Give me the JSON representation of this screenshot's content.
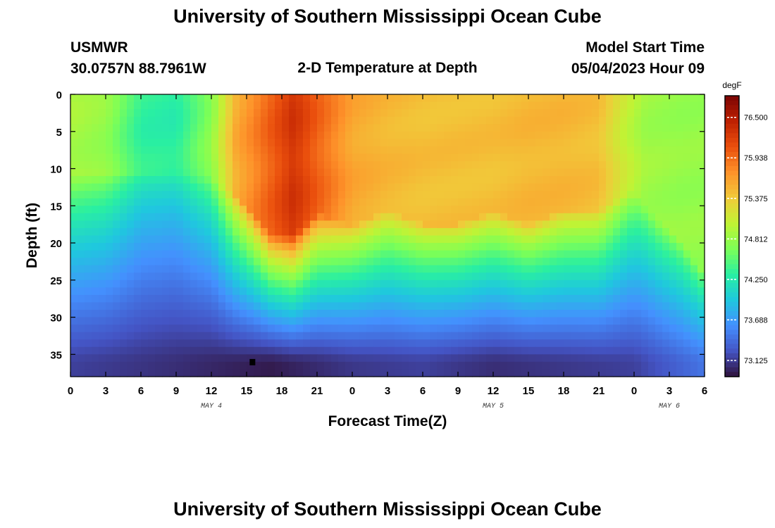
{
  "page": {
    "title": "University of Southern Mississippi Ocean Cube",
    "footer_title": "University of Southern Mississippi Ocean Cube",
    "station": "USMWR",
    "coords": "30.0757N  88.7961W",
    "subtitle": "2-D Temperature at Depth",
    "model_label": "Model Start Time",
    "model_time": "05/04/2023 Hour 09"
  },
  "chart_data": {
    "type": "heatmap",
    "title": "2-D Temperature at Depth",
    "xlabel": "Forecast Time(Z)",
    "ylabel": "Depth (ft)",
    "units": "degF",
    "xlim": [
      0,
      54
    ],
    "ylim": [
      0,
      38
    ],
    "x_tick_values": [
      0,
      3,
      6,
      9,
      12,
      15,
      18,
      21,
      24,
      27,
      30,
      33,
      36,
      39,
      42,
      45,
      48,
      51,
      54
    ],
    "x_tick_labels": [
      "0",
      "3",
      "6",
      "9",
      "12",
      "15",
      "18",
      "21",
      "0",
      "3",
      "6",
      "9",
      "12",
      "15",
      "18",
      "21",
      "0",
      "3",
      "6"
    ],
    "y_tick_values": [
      0,
      5,
      10,
      15,
      20,
      25,
      30,
      35
    ],
    "y_tick_labels": [
      "0",
      "5",
      "10",
      "15",
      "20",
      "25",
      "30",
      "35"
    ],
    "date_labels": [
      {
        "x": 12,
        "text": "MAY 4"
      },
      {
        "x": 36,
        "text": "MAY 5"
      },
      {
        "x": 51,
        "text": "MAY 6"
      }
    ],
    "colorbar": {
      "label": "degF",
      "min": 72.9,
      "max": 76.8,
      "ticks": [
        73.125,
        73.688,
        74.25,
        74.812,
        75.375,
        75.938,
        76.5
      ],
      "tick_labels": [
        "73.125",
        "73.688",
        "74.250",
        "74.812",
        "75.375",
        "75.938",
        "76.500"
      ]
    },
    "thermocline_depth": [
      {
        "x": 0,
        "depth": 13
      },
      {
        "x": 6,
        "depth": 13
      },
      {
        "x": 12,
        "depth": 13
      },
      {
        "x": 14,
        "depth": 15.5
      },
      {
        "x": 17,
        "depth": 21
      },
      {
        "x": 19,
        "depth": 21
      },
      {
        "x": 21,
        "depth": 18
      },
      {
        "x": 24,
        "depth": 19.5
      },
      {
        "x": 27,
        "depth": 17.5
      },
      {
        "x": 30,
        "depth": 19.5
      },
      {
        "x": 33,
        "depth": 19.5
      },
      {
        "x": 36,
        "depth": 18
      },
      {
        "x": 39,
        "depth": 19.5
      },
      {
        "x": 42,
        "depth": 17.5
      },
      {
        "x": 45,
        "depth": 17.5
      },
      {
        "x": 48,
        "depth": 15
      },
      {
        "x": 50,
        "depth": 19
      },
      {
        "x": 52,
        "depth": 22
      },
      {
        "x": 54,
        "depth": 26
      }
    ],
    "surface_temperature": [
      {
        "x": 0,
        "value": 74.9
      },
      {
        "x": 3,
        "value": 74.8
      },
      {
        "x": 6,
        "value": 74.35
      },
      {
        "x": 9,
        "value": 74.3
      },
      {
        "x": 12,
        "value": 74.75
      },
      {
        "x": 14,
        "value": 75.55
      },
      {
        "x": 17,
        "value": 76.0
      },
      {
        "x": 19,
        "value": 76.3
      },
      {
        "x": 21,
        "value": 76.0
      },
      {
        "x": 24,
        "value": 75.6
      },
      {
        "x": 27,
        "value": 75.5
      },
      {
        "x": 30,
        "value": 75.45
      },
      {
        "x": 33,
        "value": 75.45
      },
      {
        "x": 36,
        "value": 75.45
      },
      {
        "x": 39,
        "value": 75.5
      },
      {
        "x": 42,
        "value": 75.5
      },
      {
        "x": 45,
        "value": 75.45
      },
      {
        "x": 47,
        "value": 75.1
      },
      {
        "x": 49,
        "value": 74.85
      },
      {
        "x": 52,
        "value": 74.8
      },
      {
        "x": 54,
        "value": 74.8
      }
    ],
    "bottom_temperature": [
      {
        "x": 0,
        "value": 73.15
      },
      {
        "x": 9,
        "value": 73.05
      },
      {
        "x": 17,
        "value": 72.95
      },
      {
        "x": 24,
        "value": 73.1
      },
      {
        "x": 30,
        "value": 73.15
      },
      {
        "x": 36,
        "value": 73.05
      },
      {
        "x": 42,
        "value": 73.1
      },
      {
        "x": 48,
        "value": 73.15
      },
      {
        "x": 54,
        "value": 73.45
      }
    ],
    "marker": {
      "x": 15.5,
      "depth": 36
    }
  },
  "colors": {
    "colormap": [
      "#30123b",
      "#4454c4",
      "#4490fe",
      "#1fc8de",
      "#29efa2",
      "#7dff56",
      "#c1f334",
      "#f1ca3a",
      "#fe922a",
      "#ea4f0d",
      "#be2102",
      "#7a0403"
    ]
  }
}
